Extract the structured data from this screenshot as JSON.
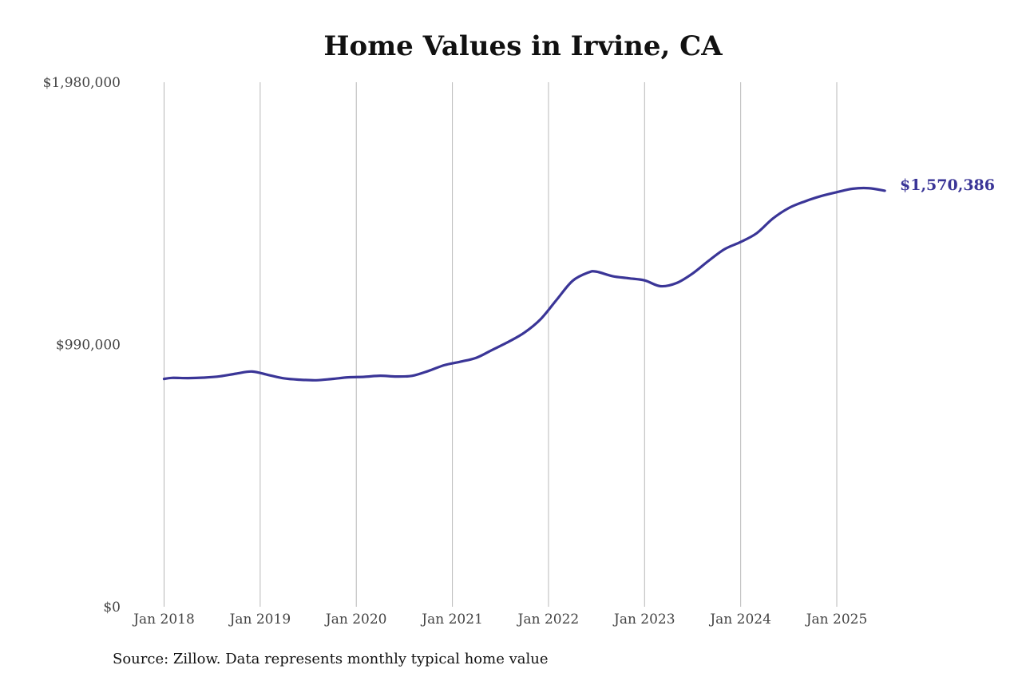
{
  "colors": {
    "line": "#3a3597",
    "grid": "#b8b8b8",
    "text": "#444444"
  },
  "source_note": "Source: Zillow. Data represents monthly typical home value",
  "chart_data": {
    "type": "line",
    "title": "Home Values in Irvine, CA",
    "xlabel": "",
    "ylabel": "",
    "ylim": [
      0,
      1980000
    ],
    "xlim": [
      "2018-01",
      "2025-07"
    ],
    "y_ticks": [
      {
        "value": 0,
        "label": "$0"
      },
      {
        "value": 990000,
        "label": "$990,000"
      },
      {
        "value": 1980000,
        "label": "$1,980,000"
      }
    ],
    "x_ticks": [
      {
        "value": "2018-01",
        "label": "Jan 2018"
      },
      {
        "value": "2019-01",
        "label": "Jan 2019"
      },
      {
        "value": "2020-01",
        "label": "Jan 2020"
      },
      {
        "value": "2021-01",
        "label": "Jan 2021"
      },
      {
        "value": "2022-01",
        "label": "Jan 2022"
      },
      {
        "value": "2023-01",
        "label": "Jan 2023"
      },
      {
        "value": "2024-01",
        "label": "Jan 2024"
      },
      {
        "value": "2025-01",
        "label": "Jan 2025"
      }
    ],
    "grid": {
      "vertical": true,
      "horizontal": false
    },
    "end_label": "$1,570,386",
    "series": [
      {
        "x": [
          "2018-01",
          "2018-02",
          "2018-04",
          "2018-06",
          "2018-08",
          "2018-10",
          "2018-12",
          "2019-02",
          "2019-04",
          "2019-06",
          "2019-08",
          "2019-10",
          "2019-12",
          "2020-02",
          "2020-04",
          "2020-06",
          "2020-08",
          "2020-10",
          "2020-12",
          "2021-02",
          "2021-04",
          "2021-06",
          "2021-08",
          "2021-10",
          "2021-12",
          "2022-02",
          "2022-04",
          "2022-06",
          "2022-07",
          "2022-09",
          "2022-11",
          "2023-01",
          "2023-03",
          "2023-05",
          "2023-07",
          "2023-09",
          "2023-11",
          "2024-01",
          "2024-03",
          "2024-05",
          "2024-07",
          "2024-09",
          "2024-11",
          "2025-01",
          "2025-03",
          "2025-05",
          "2025-07"
        ],
        "y": [
          860000,
          864000,
          863000,
          865000,
          870000,
          880000,
          888000,
          875000,
          862000,
          857000,
          855000,
          860000,
          866000,
          868000,
          872000,
          869000,
          872000,
          890000,
          912000,
          925000,
          940000,
          970000,
          1000000,
          1035000,
          1085000,
          1158000,
          1230000,
          1262000,
          1265000,
          1248000,
          1240000,
          1232000,
          1210000,
          1222000,
          1258000,
          1306000,
          1350000,
          1377000,
          1410000,
          1465000,
          1505000,
          1530000,
          1550000,
          1565000,
          1578000,
          1580000,
          1570386
        ]
      }
    ]
  }
}
